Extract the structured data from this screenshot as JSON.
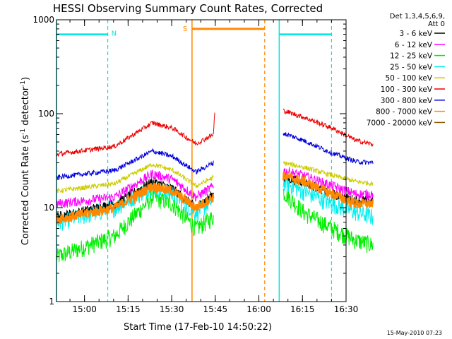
{
  "chart_data": {
    "type": "line",
    "title": "HESSI Observing Summary Count Rates, Corrected",
    "xlabel": "Start Time (17-Feb-10 14:50:22)",
    "ylabel": "Corrected Count Rate (s⁻¹ detector⁻¹)",
    "ylabel_parts": {
      "a": "Corrected Count Rate (s",
      "sup1": "-1",
      "b": " detector",
      "sup2": "-1",
      "c": ")"
    },
    "y_scale": "log",
    "ylim": [
      1,
      1000
    ],
    "xlim": [
      "14:50:22",
      "16:30"
    ],
    "x_tick_labels": [
      "15:00",
      "15:15",
      "15:30",
      "15:45",
      "16:00",
      "16:15",
      "16:30"
    ],
    "y_tick_labels": [
      "1",
      "10",
      "100",
      "1000"
    ],
    "grid": false,
    "legend_title_lines": [
      "Det 1,3,4,5,6,9,",
      "Att 0"
    ],
    "legend_position": "right",
    "timestamp": "15-May-2010 07:23",
    "series": [
      {
        "name": "3 - 6 keV",
        "color": "#000000"
      },
      {
        "name": "6 - 12 keV",
        "color": "#ff00ff"
      },
      {
        "name": "12 - 25 keV",
        "color": "#00ee00"
      },
      {
        "name": "25 - 50 keV",
        "color": "#00eeee"
      },
      {
        "name": "50 - 100 keV",
        "color": "#cccc00"
      },
      {
        "name": "100 - 300 keV",
        "color": "#ee0000"
      },
      {
        "name": "300 - 800 keV",
        "color": "#0000dd"
      },
      {
        "name": "800 - 7000 keV",
        "color": "#ff8800"
      },
      {
        "name": "7000 - 20000 keV",
        "color": "#8b5a00"
      }
    ],
    "series_levels": {
      "note_units": "approximate count rate, time in minutes after 14:50:22",
      "100 - 300 keV": {
        "pass1": [
          [
            0,
            37
          ],
          [
            20,
            45
          ],
          [
            33,
            80
          ],
          [
            40,
            70
          ],
          [
            48,
            48
          ],
          [
            54,
            60
          ],
          [
            54.5,
            110
          ]
        ],
        "pass2": [
          [
            78,
            108
          ],
          [
            85,
            92
          ],
          [
            95,
            70
          ],
          [
            103,
            52
          ],
          [
            109,
            47
          ]
        ]
      },
      "300 - 800 keV": {
        "pass1": [
          [
            0,
            21
          ],
          [
            20,
            25
          ],
          [
            33,
            40
          ],
          [
            40,
            35
          ],
          [
            48,
            24
          ],
          [
            54,
            30
          ]
        ],
        "pass2": [
          [
            78,
            62
          ],
          [
            85,
            52
          ],
          [
            95,
            38
          ],
          [
            103,
            31
          ],
          [
            109,
            30
          ]
        ]
      },
      "50 - 100 keV": {
        "pass1": [
          [
            0,
            15
          ],
          [
            20,
            18
          ],
          [
            33,
            29
          ],
          [
            40,
            25
          ],
          [
            48,
            17
          ],
          [
            54,
            21
          ]
        ],
        "pass2": [
          [
            78,
            30
          ],
          [
            85,
            27
          ],
          [
            95,
            22
          ],
          [
            103,
            19
          ],
          [
            109,
            18
          ]
        ]
      },
      "6 - 12 keV": {
        "pass1": [
          [
            0,
            11
          ],
          [
            20,
            13
          ],
          [
            33,
            23
          ],
          [
            40,
            20
          ],
          [
            48,
            13
          ],
          [
            54,
            17
          ]
        ],
        "pass2": [
          [
            78,
            25
          ],
          [
            85,
            22
          ],
          [
            95,
            17
          ],
          [
            103,
            14
          ],
          [
            109,
            14
          ]
        ]
      },
      "3 - 6 keV": {
        "pass1": [
          [
            0,
            8
          ],
          [
            20,
            11
          ],
          [
            33,
            19
          ],
          [
            40,
            16
          ],
          [
            48,
            10
          ],
          [
            54,
            14
          ]
        ],
        "pass2": [
          [
            78,
            21
          ],
          [
            85,
            19
          ],
          [
            95,
            14
          ],
          [
            103,
            12
          ],
          [
            109,
            12
          ]
        ]
      },
      "800 - 7000 keV": {
        "pass1": [
          [
            0,
            7.5
          ],
          [
            20,
            10
          ],
          [
            33,
            17
          ],
          [
            40,
            15
          ],
          [
            48,
            10
          ],
          [
            54,
            13
          ]
        ],
        "pass2": [
          [
            78,
            22
          ],
          [
            85,
            19
          ],
          [
            95,
            14
          ],
          [
            103,
            11
          ],
          [
            109,
            11
          ]
        ]
      },
      "25 - 50 keV": {
        "pass1": [
          [
            0,
            7
          ],
          [
            20,
            10
          ],
          [
            33,
            17
          ],
          [
            40,
            14
          ],
          [
            48,
            9
          ],
          [
            54,
            12
          ]
        ],
        "pass2": [
          [
            78,
            19
          ],
          [
            85,
            15
          ],
          [
            95,
            11
          ],
          [
            103,
            9
          ],
          [
            109,
            8
          ]
        ]
      },
      "12 - 25 keV": {
        "pass1": [
          [
            0,
            3
          ],
          [
            20,
            5
          ],
          [
            33,
            13
          ],
          [
            40,
            11
          ],
          [
            48,
            6
          ],
          [
            54,
            8
          ]
        ],
        "pass2": [
          [
            78,
            15
          ],
          [
            85,
            9
          ],
          [
            95,
            6
          ],
          [
            103,
            4.5
          ],
          [
            109,
            4
          ]
        ]
      }
    },
    "annotations": {
      "night_label": "N",
      "saa_label": "S",
      "cyan_bar_level": 700,
      "orange_bar_level": 800,
      "night_intervals": [
        [
          "14:50:22",
          "15:08"
        ],
        [
          "16:07",
          "16:25"
        ]
      ],
      "saa_interval": [
        "15:37",
        "16:02"
      ],
      "orange_solid_x": "15:37",
      "orange_dashed_x": "16:02",
      "cyan_solid_x": "16:07",
      "cyan_dashed_x": [
        "15:08",
        "16:25"
      ]
    }
  }
}
